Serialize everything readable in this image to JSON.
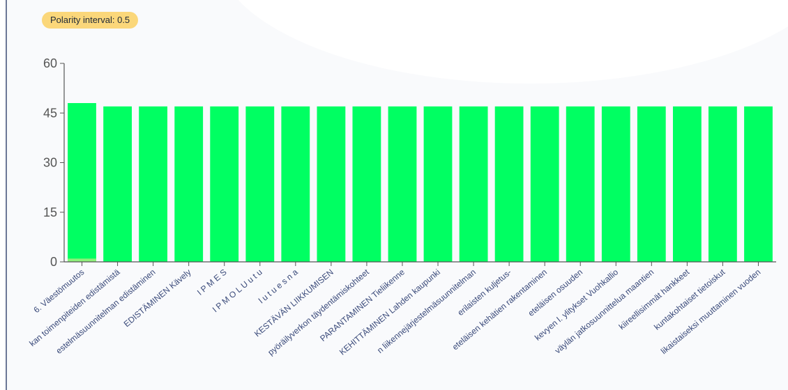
{
  "badge": {
    "label": "Polarity interval: 0.5"
  },
  "colors": {
    "bar": "#00ff62",
    "small_bar": "#8ef07a",
    "axis": "#555555",
    "label": "#3a4a7a",
    "badge": "#fbd77a"
  },
  "chart_data": {
    "type": "bar",
    "title": "",
    "xlabel": "",
    "ylabel": "",
    "ylim": [
      0,
      60
    ],
    "yticks": [
      0,
      15,
      30,
      45,
      60
    ],
    "categories": [
      "6. Väestömuutos",
      "kan toimenpiteiden edistämistä",
      "estelmäsuunnitelman edistäminen",
      "EDISTÄMINEN Kävely",
      "I P M E S",
      "I P M O L U u t u",
      "l u t u e s n a",
      "KESTÄVÄN LIIKKUMISEN",
      "pyöräilyverkon täydentämiskohteet",
      "PARANTAMINEN Tieliikenne",
      "KEHITTÄMINEN Lahden kaupunki",
      "n liikennejärjestelmäsuunnitelman",
      "erilaisten kuljetus-",
      "eteläisen kehätien rakentaminen",
      "eteläisen osuuden",
      "kevyen l. ylitykset Vuohkallio",
      "väylän jatkosuunnittelua maantien",
      "kiireellisimmät hankkeet",
      "kuntakohtaiset tietoiskut",
      "likaistaiseksi muuttaminen vuoden"
    ],
    "series": [
      {
        "values": [
          48,
          47,
          47,
          47,
          47,
          47,
          47,
          47,
          47,
          47,
          47,
          47,
          47,
          47,
          47,
          47,
          47,
          47,
          47,
          47
        ]
      },
      {
        "values": [
          1,
          0,
          0,
          0,
          0,
          0,
          0,
          0,
          0,
          0,
          0,
          0,
          0,
          0,
          0,
          0,
          0,
          0,
          0,
          0
        ]
      }
    ],
    "grid": false,
    "legend": "none"
  }
}
